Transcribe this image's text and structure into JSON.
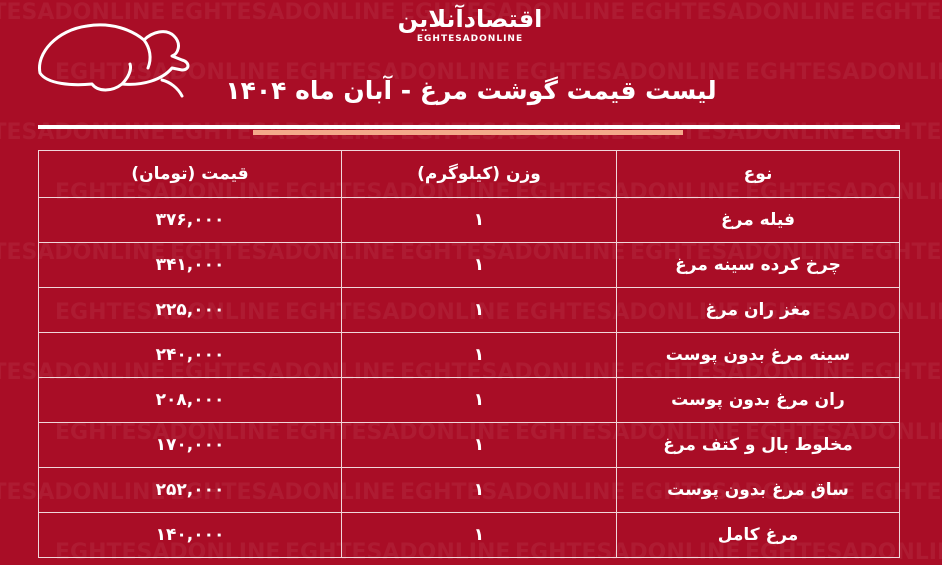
{
  "brand": {
    "logo_fa": "اقتصادآنلاین",
    "logo_en": "EGHTESADONLINE"
  },
  "title": "لیست قیمت گوشت مرغ - آبان ماه ۱۴۰۴",
  "colors": {
    "background": "#a90d26",
    "accent": "#f4a98a",
    "text": "#ffffff"
  },
  "icons": {
    "chicken": "roast-chicken-outline-icon"
  },
  "table": {
    "headers": [
      "نوع",
      "وزن (کیلوگرم)",
      "قیمت (تومان)"
    ],
    "rows": [
      [
        "فیله مرغ",
        "۱",
        "۳۷۶,۰۰۰"
      ],
      [
        "چرخ کرده سینه مرغ",
        "۱",
        "۳۴۱,۰۰۰"
      ],
      [
        "مغز ران مرغ",
        "۱",
        "۲۲۵,۰۰۰"
      ],
      [
        "سینه مرغ بدون پوست",
        "۱",
        "۲۴۰,۰۰۰"
      ],
      [
        "ران مرغ بدون پوست",
        "۱",
        "۲۰۸,۰۰۰"
      ],
      [
        "مخلوط بال و کتف مرغ",
        "۱",
        "۱۷۰,۰۰۰"
      ],
      [
        "ساق مرغ بدون پوست",
        "۱",
        "۲۵۲,۰۰۰"
      ],
      [
        "مرغ کامل",
        "۱",
        "۱۴۰,۰۰۰"
      ]
    ]
  }
}
